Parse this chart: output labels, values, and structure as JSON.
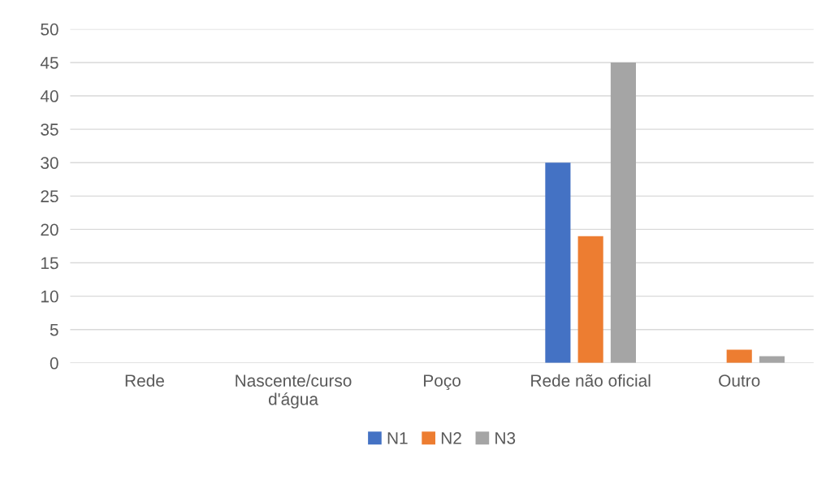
{
  "chart_data": {
    "type": "bar",
    "categories": [
      "Rede",
      "Nascente/curso\nd'água",
      "Poço",
      "Rede não oficial",
      "Outro"
    ],
    "series": [
      {
        "name": "N1",
        "color": "#4472c4",
        "values": [
          0,
          0,
          0,
          30,
          0
        ]
      },
      {
        "name": "N2",
        "color": "#ed7d31",
        "values": [
          0,
          0,
          0,
          19,
          2
        ]
      },
      {
        "name": "N3",
        "color": "#a5a5a5",
        "values": [
          0,
          0,
          0,
          45,
          1
        ]
      }
    ],
    "ylim": [
      0,
      50
    ],
    "yticks": [
      0,
      5,
      10,
      15,
      20,
      25,
      30,
      35,
      40,
      45,
      50
    ],
    "grid": "y",
    "legend": "bottom"
  }
}
